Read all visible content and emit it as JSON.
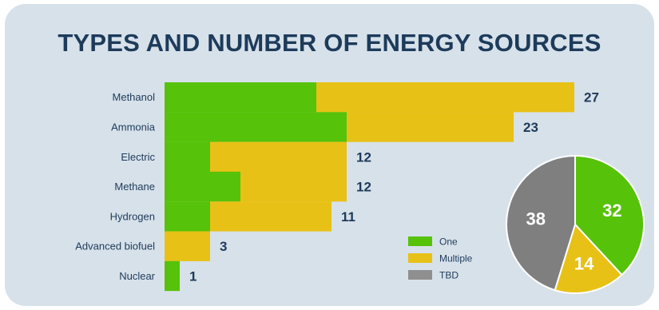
{
  "chart_data": [
    {
      "type": "bar",
      "orientation": "horizontal",
      "stacked": true,
      "title": "TYPES AND NUMBER OF ENERGY SOURCES",
      "categories": [
        "Methanol",
        "Ammonia",
        "Electric",
        "Methane",
        "Hydrogen",
        "Advanced biofuel",
        "Nuclear"
      ],
      "series": [
        {
          "name": "One",
          "color": "#56c20a",
          "values": [
            10,
            12,
            3,
            5,
            3,
            0,
            1
          ]
        },
        {
          "name": "Multiple",
          "color": "#e8c116",
          "values": [
            17,
            11,
            9,
            7,
            8,
            3,
            0
          ]
        }
      ],
      "totals": [
        "27",
        "23",
        "12",
        "12",
        "11",
        "3",
        "1"
      ],
      "xlim": [
        0,
        30
      ],
      "grid": false,
      "legend": {
        "position": "bottom-right",
        "entries": [
          {
            "label": "One",
            "color": "#56c20a"
          },
          {
            "label": "Multiple",
            "color": "#e8c116"
          },
          {
            "label": "TBD",
            "color": "#8f8f8f"
          }
        ]
      }
    },
    {
      "type": "pie",
      "labels": [
        "One",
        "Multiple",
        "TBD"
      ],
      "values": [
        32,
        14,
        38
      ],
      "value_labels": [
        "32",
        "14",
        "38"
      ],
      "colors": [
        "#56c20a",
        "#e8c116",
        "#7f7f7f"
      ]
    }
  ]
}
